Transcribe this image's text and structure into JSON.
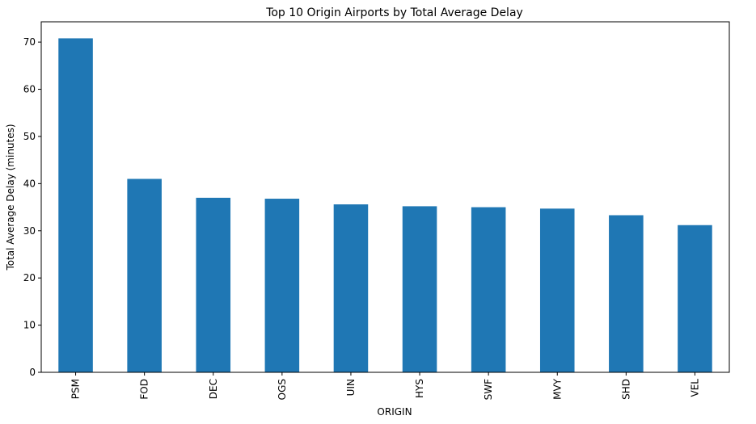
{
  "chart_data": {
    "type": "bar",
    "title": "Top 10 Origin Airports by Total Average Delay",
    "xlabel": "ORIGIN",
    "ylabel": "Total Average Delay (minutes)",
    "categories": [
      "PSM",
      "FOD",
      "DEC",
      "OGS",
      "UIN",
      "HYS",
      "SWF",
      "MVY",
      "SHD",
      "VEL"
    ],
    "values": [
      70.8,
      41.0,
      37.0,
      36.8,
      35.6,
      35.2,
      35.0,
      34.7,
      33.3,
      31.2
    ],
    "ylim": [
      0,
      74.3
    ],
    "yticks": [
      0,
      10,
      20,
      30,
      40,
      50,
      60,
      70
    ],
    "bar_color": "#1f77b4",
    "grid": false,
    "legend": "none"
  }
}
